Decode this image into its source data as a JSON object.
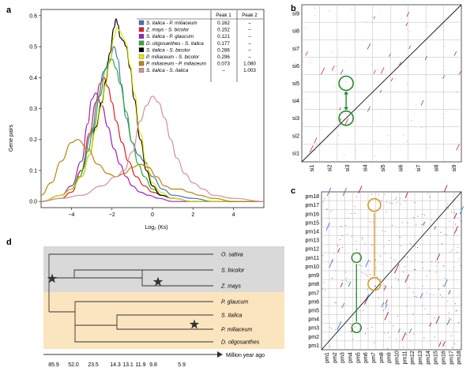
{
  "chart_data": [
    {
      "panel": "a",
      "type": "line",
      "title": "",
      "xlabel": "Log₂ (Ks)",
      "ylabel": "Gene pairs",
      "xlim": [
        -5.5,
        5.5
      ],
      "ylim": [
        -0.02,
        0.62
      ],
      "xticks": [
        -4,
        -2,
        0,
        2,
        4
      ],
      "xtick_labels": [
        "−4",
        "−2",
        "0",
        "2",
        "4"
      ],
      "yticks": [
        0.0,
        0.1,
        0.2,
        0.3,
        0.4,
        0.5,
        0.6
      ],
      "ytick_labels": [
        "0.0",
        "0.1",
        "0.2",
        "0.3",
        "0.4",
        "0.5",
        "0.6"
      ],
      "legend": {
        "header": [
          "Peak 1",
          "Peak 2"
        ],
        "rows": [
          {
            "name": "S. italica - P. miliaceum",
            "color": "#4472c4",
            "peak1": "0.162",
            "peak2": "–"
          },
          {
            "name": "Z. mays - S. bicolor",
            "color": "#e02020",
            "peak1": "0.152",
            "peak2": "–"
          },
          {
            "name": "S. italica - P. glaucum",
            "color": "#a020c8",
            "peak1": "0.121",
            "peak2": "–"
          },
          {
            "name": "D. oligosanthes - S. italica",
            "color": "#2cb030",
            "peak1": "0.177",
            "peak2": "–"
          },
          {
            "name": "S. italica - S. bicolor",
            "color": "#000000",
            "peak1": "0.286",
            "peak2": "–"
          },
          {
            "name": "P. miliaceum - S. bicolor",
            "color": "#e6e600",
            "peak1": "0.296",
            "peak2": "–"
          },
          {
            "name": "P. miliaceum - P. miliaceum",
            "color": "#b8860b",
            "peak1": "0.073",
            "peak2": "1.080"
          },
          {
            "name": "S. italica - S. italica",
            "color": "#d4909c",
            "peak1": "–",
            "peak2": "1.003"
          }
        ]
      },
      "series": [
        {
          "name": "S. italica - P. miliaceum",
          "color": "#4472c4",
          "x": [
            -5.5,
            -4.5,
            -4,
            -3.5,
            -3,
            -2.7,
            -2.4,
            -2.1,
            -1.9,
            -1.7,
            -1.55,
            -1.3,
            -1.0,
            -0.7,
            -0.4,
            0,
            0.5,
            1,
            2,
            3,
            4,
            5.5
          ],
          "y": [
            0,
            0.02,
            0.04,
            0.1,
            0.22,
            0.33,
            0.42,
            0.46,
            0.5,
            0.46,
            0.38,
            0.27,
            0.19,
            0.15,
            0.13,
            0.08,
            0.04,
            0.02,
            0.01,
            0,
            0,
            0
          ]
        },
        {
          "name": "Z. mays - S. bicolor",
          "color": "#e02020",
          "x": [
            -5.5,
            -4.5,
            -4,
            -3.5,
            -3.1,
            -2.8,
            -2.6,
            -2.4,
            -2.2,
            -2.0,
            -1.8,
            -1.5,
            -1.2,
            -0.8,
            -0.4,
            0,
            0.5,
            1,
            2,
            3,
            4,
            5.5
          ],
          "y": [
            0,
            0.01,
            0.03,
            0.1,
            0.22,
            0.32,
            0.38,
            0.4,
            0.37,
            0.32,
            0.26,
            0.19,
            0.13,
            0.08,
            0.05,
            0.03,
            0.02,
            0.01,
            0,
            0,
            0,
            0
          ]
        },
        {
          "name": "S. italica - P. glaucum",
          "color": "#a020c8",
          "x": [
            -5.5,
            -4.5,
            -4,
            -3.5,
            -3.2,
            -3.0,
            -2.8,
            -2.5,
            -2.2,
            -1.9,
            -1.6,
            -1.3,
            -1.0,
            -0.6,
            -0.2,
            0.3,
            1,
            2,
            3,
            4,
            5.5
          ],
          "y": [
            0,
            0.02,
            0.05,
            0.13,
            0.25,
            0.33,
            0.35,
            0.31,
            0.24,
            0.17,
            0.12,
            0.08,
            0.05,
            0.03,
            0.02,
            0.01,
            0,
            0,
            0,
            0,
            0
          ]
        },
        {
          "name": "D. oligosanthes - S. italica",
          "color": "#2cb030",
          "x": [
            -5.5,
            -4.5,
            -4,
            -3.6,
            -3.2,
            -2.9,
            -2.6,
            -2.3,
            -2.0,
            -1.8,
            -1.6,
            -1.3,
            -1.0,
            -0.7,
            -0.4,
            0,
            0.5,
            1,
            2,
            3,
            4,
            5.5
          ],
          "y": [
            0,
            0.02,
            0.04,
            0.08,
            0.16,
            0.24,
            0.34,
            0.43,
            0.46,
            0.43,
            0.38,
            0.29,
            0.19,
            0.12,
            0.08,
            0.04,
            0.02,
            0.01,
            0,
            0,
            0,
            0
          ]
        },
        {
          "name": "S. italica - S. bicolor",
          "color": "#000000",
          "x": [
            -5.5,
            -4.5,
            -4,
            -3.5,
            -3.1,
            -2.8,
            -2.5,
            -2.3,
            -2.1,
            -1.9,
            -1.8,
            -1.7,
            -1.6,
            -1.45,
            -1.3,
            -1.1,
            -0.9,
            -0.6,
            -0.3,
            0,
            0.4,
            1,
            2,
            3,
            4,
            5.5
          ],
          "y": [
            0,
            0.02,
            0.04,
            0.08,
            0.15,
            0.24,
            0.32,
            0.39,
            0.48,
            0.56,
            0.59,
            0.57,
            0.53,
            0.52,
            0.5,
            0.43,
            0.33,
            0.2,
            0.1,
            0.05,
            0.02,
            0.01,
            0,
            0,
            0,
            0
          ]
        },
        {
          "name": "P. miliaceum - S. bicolor",
          "color": "#e6e600",
          "x": [
            -5.5,
            -4.5,
            -4,
            -3.5,
            -3.1,
            -2.8,
            -2.5,
            -2.3,
            -2.1,
            -1.9,
            -1.75,
            -1.6,
            -1.45,
            -1.3,
            -1.1,
            -0.9,
            -0.6,
            -0.3,
            0,
            0.4,
            1,
            2,
            3,
            4,
            5.5
          ],
          "y": [
            0,
            0.02,
            0.04,
            0.08,
            0.15,
            0.23,
            0.31,
            0.38,
            0.46,
            0.53,
            0.56,
            0.55,
            0.53,
            0.51,
            0.44,
            0.35,
            0.22,
            0.12,
            0.06,
            0.03,
            0.01,
            0,
            0,
            0,
            0
          ]
        },
        {
          "name": "P. miliaceum - P. miliaceum",
          "color": "#b8860b",
          "x": [
            -5.5,
            -5,
            -4.5,
            -4.0,
            -3.7,
            -3.2,
            -2.7,
            -2.2,
            -1.8,
            -1.4,
            -1.0,
            -0.6,
            -0.2,
            0.2,
            0.6,
            1.0,
            1.4,
            1.8,
            2.3,
            3,
            4,
            5.5
          ],
          "y": [
            0.02,
            0.06,
            0.13,
            0.19,
            0.2,
            0.17,
            0.12,
            0.09,
            0.08,
            0.09,
            0.11,
            0.12,
            0.11,
            0.08,
            0.05,
            0.04,
            0.04,
            0.03,
            0.02,
            0.01,
            0,
            0
          ]
        },
        {
          "name": "S. italica - S. italica",
          "color": "#d4909c",
          "x": [
            -5.5,
            -4.5,
            -3.5,
            -2.5,
            -1.8,
            -1.4,
            -1.0,
            -0.6,
            -0.3,
            0,
            0.3,
            0.6,
            0.9,
            1.2,
            1.6,
            2.0,
            2.5,
            3,
            4,
            5.5
          ],
          "y": [
            0,
            0.01,
            0.02,
            0.05,
            0.08,
            0.1,
            0.16,
            0.26,
            0.31,
            0.34,
            0.32,
            0.27,
            0.2,
            0.14,
            0.09,
            0.06,
            0.04,
            0.02,
            0.01,
            0
          ]
        }
      ]
    },
    {
      "panel": "b",
      "type": "scatter",
      "title": "",
      "x_tick_labels": [
        "si1",
        "si2",
        "si3",
        "si4",
        "si5",
        "si6",
        "si7",
        "si8",
        "si9"
      ],
      "y_tick_labels": [
        "si1",
        "si2",
        "si3",
        "si4",
        "si5",
        "si6",
        "si7",
        "si8",
        "si9"
      ],
      "annotation": "Circled syntenic blocks at si3-si5 and si3-si3 linked by green arrow"
    },
    {
      "panel": "c",
      "type": "scatter",
      "title": "",
      "x_tick_labels": [
        "pm1",
        "pm2",
        "pm3",
        "pm4",
        "pm5",
        "pm6",
        "pm7",
        "pm8",
        "pm9",
        "pm10",
        "pm11",
        "pm12",
        "pm13",
        "pm14",
        "pm15",
        "pm16",
        "pm17",
        "pm18"
      ],
      "y_tick_labels": [
        "pm1",
        "pm2",
        "pm3",
        "pm4",
        "pm5",
        "pm6",
        "pm7",
        "pm8",
        "pm9",
        "pm10",
        "pm11",
        "pm12",
        "pm13",
        "pm14",
        "pm15",
        "pm16",
        "pm17",
        "pm18"
      ],
      "annotation": "Green and orange circled blocks linked by arrows"
    },
    {
      "panel": "d",
      "type": "tree",
      "taxa": [
        "O. sativa",
        "S. bicolor",
        "Z. mays",
        "P. glaucum",
        "S. italica",
        "P. miliaceum",
        "D. oligosanthes"
      ],
      "time_ticks": [
        "85.9",
        "52.0",
        "23.5",
        "14.3",
        "13.1",
        "11.9",
        "9.8",
        "5.9"
      ],
      "axis_label": "Million year ago",
      "band_colors": {
        "top": "#d9d9d9",
        "bottom": "#fbe5bf"
      }
    }
  ]
}
